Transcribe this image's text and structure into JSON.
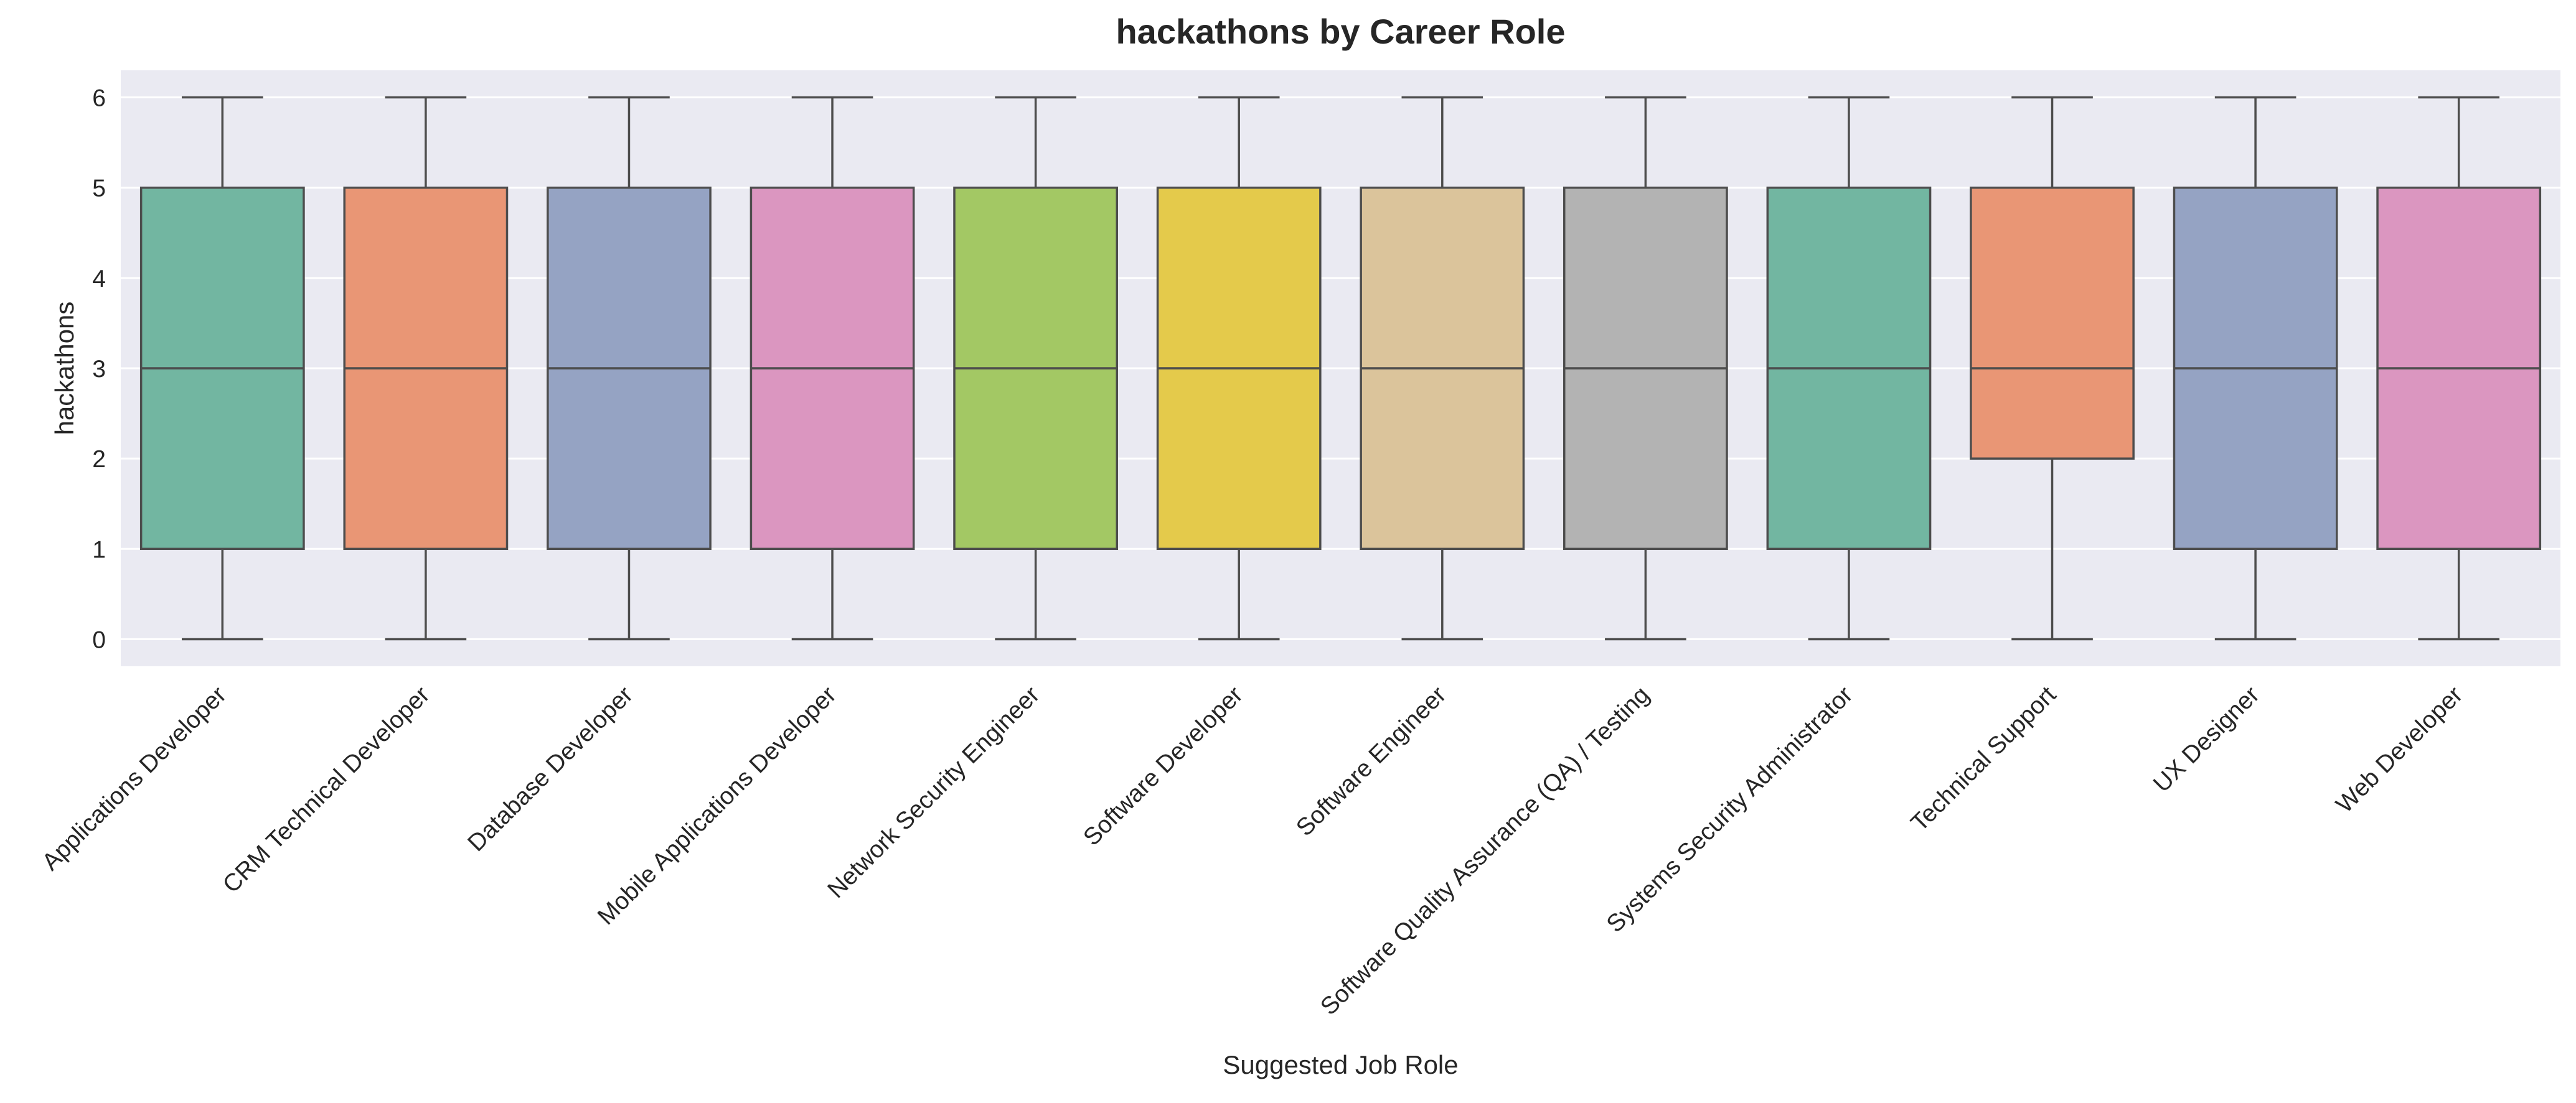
{
  "chart_data": {
    "type": "box",
    "title": "hackathons by Career Role",
    "xlabel": "Suggested Job Role",
    "ylabel": "hackathons",
    "ylim": [
      -0.3,
      6.3
    ],
    "yticks": [
      0,
      1,
      2,
      3,
      4,
      5,
      6
    ],
    "grid": true,
    "legend": "none",
    "categories": [
      "Applications Developer",
      "CRM Technical Developer",
      "Database Developer",
      "Mobile Applications Developer",
      "Network Security Engineer",
      "Software Developer",
      "Software Engineer",
      "Software Quality Assurance (QA) / Testing",
      "Systems Security Administrator",
      "Technical Support",
      "UX Designer",
      "Web Developer"
    ],
    "boxes": [
      {
        "min": 0,
        "q1": 1,
        "median": 3,
        "q3": 5,
        "max": 6
      },
      {
        "min": 0,
        "q1": 1,
        "median": 3,
        "q3": 5,
        "max": 6
      },
      {
        "min": 0,
        "q1": 1,
        "median": 3,
        "q3": 5,
        "max": 6
      },
      {
        "min": 0,
        "q1": 1,
        "median": 3,
        "q3": 5,
        "max": 6
      },
      {
        "min": 0,
        "q1": 1,
        "median": 3,
        "q3": 5,
        "max": 6
      },
      {
        "min": 0,
        "q1": 1,
        "median": 3,
        "q3": 5,
        "max": 6
      },
      {
        "min": 0,
        "q1": 1,
        "median": 3,
        "q3": 5,
        "max": 6
      },
      {
        "min": 0,
        "q1": 1,
        "median": 3,
        "q3": 5,
        "max": 6
      },
      {
        "min": 0,
        "q1": 1,
        "median": 3,
        "q3": 5,
        "max": 6
      },
      {
        "min": 0,
        "q1": 2,
        "median": 3,
        "q3": 5,
        "max": 6
      },
      {
        "min": 0,
        "q1": 1,
        "median": 3,
        "q3": 5,
        "max": 6
      },
      {
        "min": 0,
        "q1": 1,
        "median": 3,
        "q3": 5,
        "max": 6
      }
    ],
    "colors": [
      "#72b6a1",
      "#e99675",
      "#95a3c3",
      "#db96c0",
      "#a3c864",
      "#e4ca4b",
      "#dbc49b",
      "#b3b3b3",
      "#72b6a1",
      "#e99675",
      "#95a3c3",
      "#db96c0"
    ],
    "style": {
      "background": "#eaeaf2",
      "grid_color": "#ffffff",
      "line_color": "#4d4d4d",
      "text_color": "#262626"
    }
  }
}
